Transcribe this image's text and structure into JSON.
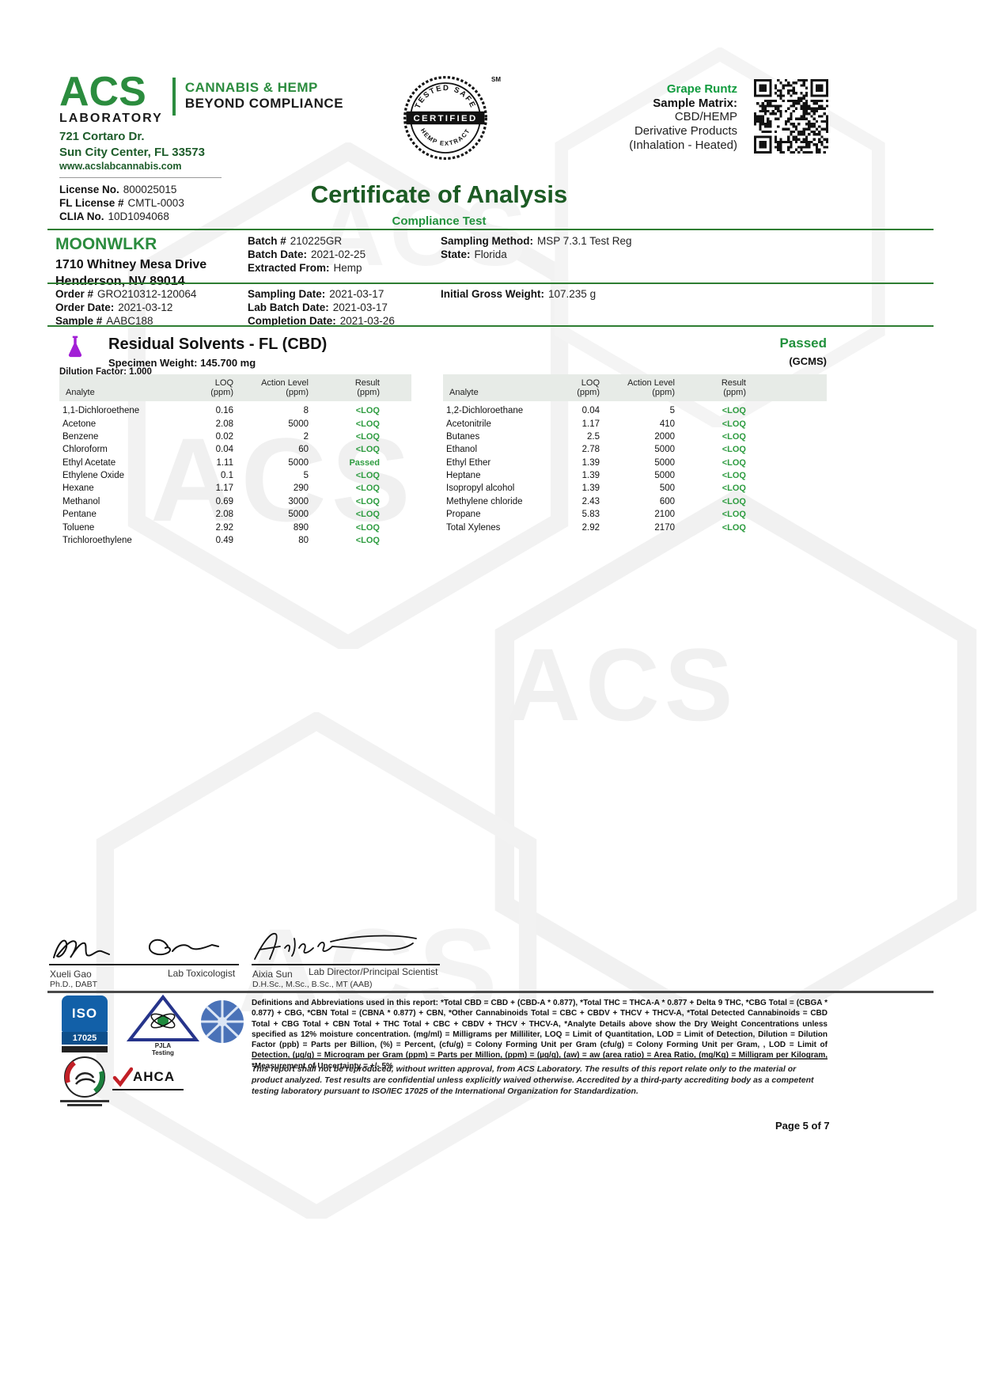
{
  "header": {
    "logo": {
      "name": "ACS",
      "laboratory": "LABORATORY",
      "tagline1": "CANNABIS & HEMP",
      "tagline2": "BEYOND COMPLIANCE"
    },
    "address_line1": "721 Cortaro Dr.",
    "address_line2": "Sun City Center, FL 33573",
    "website": "www.acslabcannabis.com",
    "licenses": [
      {
        "label": "License No.",
        "value": "800025015"
      },
      {
        "label": "FL License #",
        "value": "CMTL-0003"
      },
      {
        "label": "CLIA No.",
        "value": "10D1094068"
      }
    ],
    "seal": {
      "top": "TESTED SAFE",
      "middle": "CERTIFIED",
      "bottom": "HEMP EXTRACT",
      "mark": "SM"
    },
    "sample": {
      "name": "Grape Runtz",
      "matrix_label": "Sample Matrix:",
      "matrix_lines": [
        "CBD/HEMP",
        "Derivative Products",
        "(Inhalation - Heated)"
      ]
    }
  },
  "title": "Certificate of Analysis",
  "subtitle": "Compliance Test",
  "client": {
    "name": "MOONWLKR",
    "address_line1": "1710 Whitney Mesa Drive",
    "address_line2": "Henderson, NV 89014"
  },
  "info_batch": [
    {
      "label": "Batch #",
      "value": "210225GR"
    },
    {
      "label": "Batch Date:",
      "value": "2021-02-25"
    },
    {
      "label": "Extracted From:",
      "value": "Hemp"
    }
  ],
  "info_sampling": [
    {
      "label": "Sampling Method:",
      "value": "MSP 7.3.1  Test Reg"
    },
    {
      "label": "State:",
      "value": "Florida"
    }
  ],
  "info_order": [
    {
      "label": "Order #",
      "value": "GRO210312-120064"
    },
    {
      "label": "Order Date:",
      "value": "2021-03-12"
    },
    {
      "label": "Sample #",
      "value": "AABC188"
    }
  ],
  "info_dates": [
    {
      "label": "Sampling Date:",
      "value": "2021-03-17"
    },
    {
      "label": "Lab Batch Date:",
      "value": "2021-03-17"
    },
    {
      "label": "Completion Date:",
      "value": "2021-03-26"
    }
  ],
  "info_weight": [
    {
      "label": "Initial Gross Weight:",
      "value": "107.235 g"
    }
  ],
  "section": {
    "title": "Residual Solvents - FL (CBD)",
    "status": "Passed",
    "method": "(GCMS)",
    "specimen_label": "Specimen Weight:",
    "specimen_value": "145.700 mg",
    "dilution_label": "Dilution Factor:",
    "dilution_value": "1.000"
  },
  "table": {
    "headers": {
      "analyte": "Analyte",
      "loq": "LOQ",
      "action": "Action Level",
      "result": "Result",
      "unit": "(ppm)"
    },
    "left_rows": [
      {
        "analyte": "1,1-Dichloroethene",
        "loq": "0.16",
        "action": "8",
        "result": "<LOQ"
      },
      {
        "analyte": "Acetone",
        "loq": "2.08",
        "action": "5000",
        "result": "<LOQ"
      },
      {
        "analyte": "Benzene",
        "loq": "0.02",
        "action": "2",
        "result": "<LOQ"
      },
      {
        "analyte": "Chloroform",
        "loq": "0.04",
        "action": "60",
        "result": "<LOQ"
      },
      {
        "analyte": "Ethyl Acetate",
        "loq": "1.11",
        "action": "5000",
        "result": "Passed"
      },
      {
        "analyte": "Ethylene Oxide",
        "loq": "0.1",
        "action": "5",
        "result": "<LOQ"
      },
      {
        "analyte": "Hexane",
        "loq": "1.17",
        "action": "290",
        "result": "<LOQ"
      },
      {
        "analyte": "Methanol",
        "loq": "0.69",
        "action": "3000",
        "result": "<LOQ"
      },
      {
        "analyte": "Pentane",
        "loq": "2.08",
        "action": "5000",
        "result": "<LOQ"
      },
      {
        "analyte": "Toluene",
        "loq": "2.92",
        "action": "890",
        "result": "<LOQ"
      },
      {
        "analyte": "Trichloroethylene",
        "loq": "0.49",
        "action": "80",
        "result": "<LOQ"
      }
    ],
    "right_rows": [
      {
        "analyte": "1,2-Dichloroethane",
        "loq": "0.04",
        "action": "5",
        "result": "<LOQ"
      },
      {
        "analyte": "Acetonitrile",
        "loq": "1.17",
        "action": "410",
        "result": "<LOQ"
      },
      {
        "analyte": "Butanes",
        "loq": "2.5",
        "action": "2000",
        "result": "<LOQ"
      },
      {
        "analyte": "Ethanol",
        "loq": "2.78",
        "action": "5000",
        "result": "<LOQ"
      },
      {
        "analyte": "Ethyl Ether",
        "loq": "1.39",
        "action": "5000",
        "result": "<LOQ"
      },
      {
        "analyte": "Heptane",
        "loq": "1.39",
        "action": "5000",
        "result": "<LOQ"
      },
      {
        "analyte": "Isopropyl alcohol",
        "loq": "1.39",
        "action": "500",
        "result": "<LOQ"
      },
      {
        "analyte": "Methylene chloride",
        "loq": "2.43",
        "action": "600",
        "result": "<LOQ"
      },
      {
        "analyte": "Propane",
        "loq": "5.83",
        "action": "2100",
        "result": "<LOQ"
      },
      {
        "analyte": "Total Xylenes",
        "loq": "2.92",
        "action": "2170",
        "result": "<LOQ"
      }
    ]
  },
  "signatures": [
    {
      "name": "Xueli Gao",
      "credentials": "Ph.D., DABT",
      "title": "Lab Toxicologist"
    },
    {
      "name": "Aixia Sun",
      "credentials": "D.H.Sc., M.Sc., B.Sc., MT (AAB)",
      "title": "Lab Director/Principal Scientist"
    }
  ],
  "footer": {
    "definitions": "Definitions and Abbreviations used in this report: *Total CBD = CBD + (CBD-A * 0.877), *Total THC = THCA-A * 0.877 + Delta 9 THC, *CBG Total = (CBGA * 0.877) + CBG, *CBN Total = (CBNA * 0.877) + CBN, *Other Cannabinoids Total = CBC + CBDV + THCV + THCV-A, *Total Detected Cannabinoids = CBD Total + CBG Total + CBN Total + THC Total + CBC + CBDV + THCV + THCV-A, *Analyte Details above show the Dry Weight Concentrations unless specified as 12% moisture concentration. (mg/ml) = Milligrams per Milliliter, LOQ = Limit of Quantitation, LOD = Limit of Detection, Dilution = Dilution Factor (ppb) = Parts per Billion, (%) = Percent, (cfu/g) = Colony Forming Unit per Gram (cfu/g) = Colony Forming Unit per Gram, , LOD = Limit of Detection, (µg/g) = Microgram per Gram (ppm) = Parts per Million, (ppm) = (µg/g), (aw) = aw (area ratio) = Area Ratio, (mg/Kg) = Milligram per Kilogram, *Measurement of Uncertainty = +/- 5%",
    "disclaimer": "This report shall not be reproduced, without written approval, from ACS Laboratory. The results of this report relate only to the material or product analyzed. Test results are confidential unless explicitly waived otherwise. Accredited by a third-party accrediting body as a competent testing laboratory pursuant to ISO/IEC 17025 of the International Organization for Standardization.",
    "page": "Page 5 of 7",
    "logos": {
      "iso_line1": "ISO",
      "iso_line2": "17025",
      "pjla_line1": "PJLA",
      "pjla_line2": "Testing",
      "ahca": "AHCA"
    }
  },
  "colors": {
    "brand_green": "#2b8c3e",
    "bright_green": "#21913c",
    "dark_green_title": "#1c5b24",
    "result_green": "#2e9c40",
    "purple_flask": "#a21fd6",
    "table_header_bg": "#e7ebe7"
  }
}
